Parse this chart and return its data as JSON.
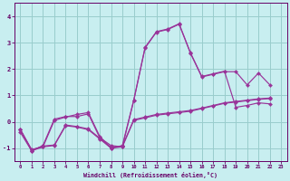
{
  "xlabel": "Windchill (Refroidissement éolien,°C)",
  "bg_color": "#c8eef0",
  "grid_color": "#99cccc",
  "line_color": "#993399",
  "text_color": "#660066",
  "xlim": [
    -0.5,
    23.5
  ],
  "ylim": [
    -1.5,
    4.5
  ],
  "xticks": [
    0,
    1,
    2,
    3,
    4,
    5,
    6,
    7,
    8,
    9,
    10,
    11,
    12,
    13,
    14,
    15,
    16,
    17,
    18,
    19,
    20,
    21,
    22,
    23
  ],
  "yticks": [
    -1,
    0,
    1,
    2,
    3,
    4
  ],
  "series": [
    {
      "x": [
        0,
        1,
        2,
        3,
        4,
        5,
        6,
        7,
        8,
        9,
        10,
        11,
        12,
        13,
        14,
        15,
        16,
        17,
        18,
        19,
        20,
        21,
        22
      ],
      "y": [
        -0.4,
        -1.1,
        -0.9,
        0.1,
        0.2,
        0.2,
        0.3,
        -0.6,
        -0.9,
        -0.95,
        0.8,
        2.8,
        3.4,
        3.5,
        3.7,
        2.6,
        1.7,
        1.8,
        1.9,
        1.9,
        1.4,
        1.85,
        1.4
      ]
    },
    {
      "x": [
        0,
        1,
        2,
        3,
        4,
        5,
        6,
        7,
        8,
        9,
        10,
        11,
        12,
        13,
        14,
        15,
        16,
        17,
        18,
        19,
        20,
        21,
        22
      ],
      "y": [
        -0.3,
        -1.05,
        -0.95,
        0.05,
        0.18,
        0.28,
        0.35,
        -0.55,
        -1.0,
        -0.9,
        0.82,
        2.82,
        3.42,
        3.52,
        3.72,
        2.62,
        1.72,
        1.82,
        1.92,
        0.55,
        0.62,
        0.72,
        0.68
      ]
    },
    {
      "x": [
        0,
        1,
        2,
        3,
        4,
        5,
        6,
        7,
        8,
        9,
        10,
        11,
        12,
        13,
        14,
        15,
        16,
        17,
        18,
        19,
        20,
        21,
        22
      ],
      "y": [
        -0.3,
        -1.1,
        -0.95,
        -0.9,
        -0.15,
        -0.2,
        -0.3,
        -0.65,
        -1.0,
        -0.95,
        0.05,
        0.15,
        0.25,
        0.3,
        0.35,
        0.4,
        0.5,
        0.6,
        0.7,
        0.75,
        0.8,
        0.85,
        0.88
      ]
    },
    {
      "x": [
        0,
        1,
        2,
        3,
        4,
        5,
        6,
        7,
        8,
        9,
        10,
        11,
        12,
        13,
        14,
        15,
        16,
        17,
        18,
        19,
        20,
        21,
        22
      ],
      "y": [
        -0.28,
        -1.08,
        -0.92,
        -0.88,
        -0.12,
        -0.18,
        -0.27,
        -0.62,
        -0.97,
        -0.92,
        0.08,
        0.18,
        0.28,
        0.33,
        0.38,
        0.43,
        0.52,
        0.62,
        0.72,
        0.77,
        0.82,
        0.87,
        0.9
      ]
    }
  ]
}
